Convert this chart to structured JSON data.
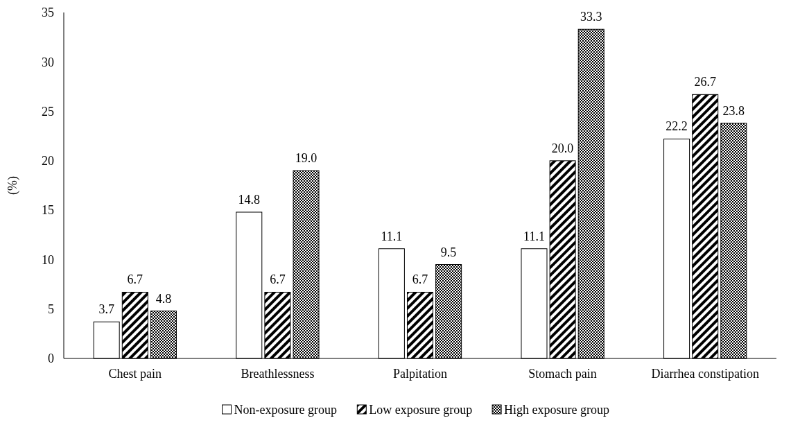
{
  "chart_data": {
    "type": "bar",
    "ylabel": "(%)",
    "categories": [
      "Chest pain",
      "Breathlessness",
      "Palpitation",
      "Stomach pain",
      "Diarrhea constipation"
    ],
    "series": [
      {
        "name": "Non-exposure group",
        "color": "#ffffff",
        "values": [
          3.7,
          14.8,
          11.1,
          11.1,
          22.2
        ],
        "value_labels": [
          "3.7",
          "14.8",
          "11.1",
          "11.1",
          "22.2"
        ]
      },
      {
        "name": "Low exposure group",
        "color": "#000000",
        "values": [
          6.7,
          6.7,
          6.7,
          20.0,
          26.7
        ],
        "value_labels": [
          "6.7",
          "6.7",
          "6.7",
          "20.0",
          "26.7"
        ]
      },
      {
        "name": "High exposure group",
        "color": "#000000",
        "values": [
          4.8,
          19.0,
          9.5,
          33.3,
          23.8
        ],
        "value_labels": [
          "4.8",
          "19.0",
          "9.5",
          "33.3",
          "23.8"
        ]
      }
    ],
    "ylim": [
      0,
      35
    ],
    "yticks": [
      0,
      5,
      10,
      15,
      20,
      25,
      30,
      35
    ],
    "legend": "bottom",
    "grid": false
  }
}
